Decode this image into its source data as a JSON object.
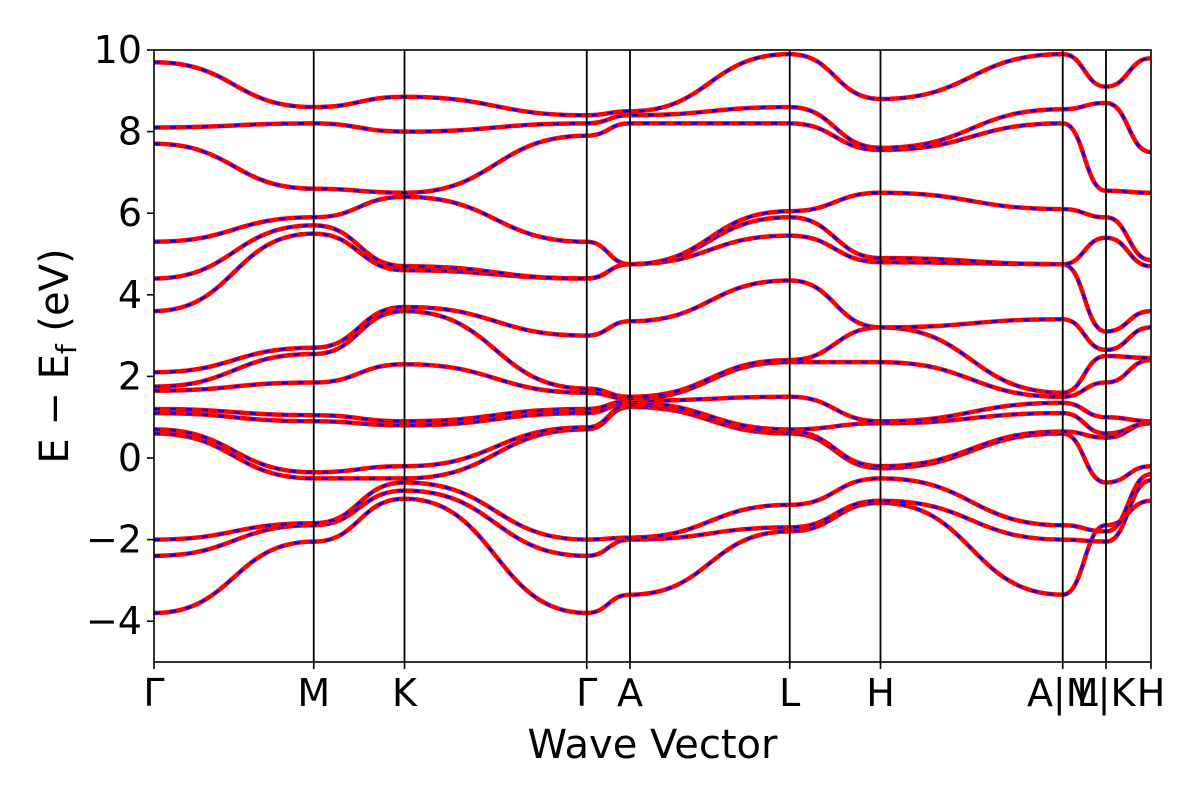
{
  "chart_data": {
    "type": "line",
    "xlabel": "Wave Vector",
    "ylabel": {
      "text_a": "E − E",
      "subscript": "f",
      "text_b": " (eV)"
    },
    "ylim": [
      -5,
      10
    ],
    "yticks": [
      -4,
      -2,
      0,
      2,
      4,
      6,
      8,
      10
    ],
    "ytick_labels": [
      "−4",
      "−2",
      "0",
      "2",
      "4",
      "6",
      "8",
      "10"
    ],
    "xlim": [
      0,
      2.79
    ],
    "kpoints": [
      {
        "label": "Γ",
        "x": 0.0
      },
      {
        "label": "M",
        "x": 0.447
      },
      {
        "label": "K",
        "x": 0.701
      },
      {
        "label": "Γ",
        "x": 1.211
      },
      {
        "label": "A",
        "x": 1.332
      },
      {
        "label": "L",
        "x": 1.779
      },
      {
        "label": "H",
        "x": 2.033
      },
      {
        "label": "A|M",
        "x": 2.543
      },
      {
        "label": "L|K",
        "x": 2.664
      },
      {
        "label": "H",
        "x": 2.79
      }
    ],
    "vlines_x": [
      0.447,
      0.701,
      1.211,
      1.332,
      1.779,
      2.033,
      2.543,
      2.664
    ],
    "colors": {
      "primary": "#ff0000",
      "overlay": "#0000ff",
      "axis": "#000000"
    },
    "series": [
      {
        "x": [
          0,
          0.447,
          0.701,
          1.211,
          1.332,
          1.779,
          2.033,
          2.543,
          2.664,
          2.79
        ],
        "values": [
          -3.8,
          -2.05,
          -1.0,
          -3.8,
          -3.35,
          -1.8,
          -1.1,
          -3.35,
          -1.65,
          -1.05
        ]
      },
      {
        "x": [
          0,
          0.447,
          0.701,
          1.211,
          1.332,
          1.779,
          2.033,
          2.543,
          2.664,
          2.79
        ],
        "values": [
          -2.4,
          -1.65,
          -0.8,
          -2.4,
          -2.0,
          -1.7,
          -1.05,
          -2.0,
          -2.05,
          -0.55
        ]
      },
      {
        "x": [
          0,
          0.447,
          0.701,
          1.211,
          1.332,
          1.779,
          2.033,
          2.543,
          2.664,
          2.79
        ],
        "values": [
          -2.0,
          -1.6,
          -0.6,
          -2.0,
          -1.95,
          -1.15,
          -0.5,
          -1.65,
          -1.8,
          -0.4
        ]
      },
      {
        "x": [
          0,
          0.447,
          0.701,
          1.211,
          1.332,
          1.779,
          2.033,
          2.543,
          2.664,
          2.79
        ],
        "values": [
          0.6,
          -0.5,
          -0.5,
          0.7,
          1.25,
          0.6,
          -0.25,
          0.6,
          -0.6,
          -0.2
        ]
      },
      {
        "x": [
          0,
          0.447,
          0.701,
          1.211,
          1.332,
          1.779,
          2.033,
          2.543,
          2.664,
          2.79
        ],
        "values": [
          0.7,
          -0.35,
          -0.2,
          0.75,
          1.3,
          0.65,
          -0.2,
          0.65,
          0.5,
          0.85
        ]
      },
      {
        "x": [
          0,
          0.447,
          0.701,
          1.211,
          1.332,
          1.779,
          2.033,
          2.543,
          2.664,
          2.79
        ],
        "values": [
          1.1,
          0.9,
          0.8,
          1.1,
          1.35,
          0.7,
          0.85,
          1.1,
          0.6,
          0.85
        ]
      },
      {
        "x": [
          0,
          0.447,
          0.701,
          1.211,
          1.332,
          1.779,
          2.033,
          2.543,
          2.664,
          2.79
        ],
        "values": [
          1.2,
          1.05,
          0.9,
          1.2,
          1.4,
          1.5,
          0.9,
          1.35,
          1.0,
          0.9
        ]
      },
      {
        "x": [
          0,
          0.447,
          0.701,
          1.211,
          1.332,
          1.779,
          2.033,
          2.543,
          2.664,
          2.79
        ],
        "values": [
          1.65,
          1.85,
          2.3,
          1.6,
          1.45,
          2.35,
          2.35,
          1.5,
          1.85,
          2.4
        ]
      },
      {
        "x": [
          0,
          0.447,
          0.701,
          1.211,
          1.332,
          1.779,
          2.033,
          2.543,
          2.664,
          2.79
        ],
        "values": [
          1.75,
          2.55,
          3.6,
          1.7,
          1.5,
          2.4,
          3.2,
          1.6,
          2.5,
          2.45
        ]
      },
      {
        "x": [
          0,
          0.447,
          0.701,
          1.211,
          1.332,
          1.779,
          2.033,
          2.543,
          2.664,
          2.79
        ],
        "values": [
          2.1,
          2.7,
          3.7,
          3.0,
          3.35,
          4.35,
          3.2,
          3.4,
          2.65,
          3.2
        ]
      },
      {
        "x": [
          0,
          0.447,
          0.701,
          1.211,
          1.332,
          1.779,
          2.033,
          2.543,
          2.664,
          2.79
        ],
        "values": [
          3.6,
          5.5,
          4.6,
          4.4,
          4.75,
          5.45,
          4.8,
          4.75,
          3.1,
          3.6
        ]
      },
      {
        "x": [
          0,
          0.447,
          0.701,
          1.211,
          1.332,
          1.779,
          2.033,
          2.543,
          2.664,
          2.79
        ],
        "values": [
          4.4,
          5.7,
          4.7,
          4.4,
          4.75,
          5.9,
          4.9,
          4.75,
          5.4,
          4.7
        ]
      },
      {
        "x": [
          0,
          0.447,
          0.701,
          1.211,
          1.332,
          1.779,
          2.033,
          2.543,
          2.664,
          2.79
        ],
        "values": [
          5.3,
          5.9,
          6.4,
          5.3,
          4.75,
          6.05,
          6.5,
          6.1,
          5.9,
          4.85
        ]
      },
      {
        "x": [
          0,
          0.447,
          0.701,
          1.211,
          1.332,
          1.779,
          2.033,
          2.543,
          2.664,
          2.79
        ],
        "values": [
          7.7,
          6.6,
          6.5,
          7.9,
          8.2,
          8.2,
          7.55,
          8.2,
          6.55,
          6.5
        ]
      },
      {
        "x": [
          0,
          0.447,
          0.701,
          1.211,
          1.332,
          1.779,
          2.033,
          2.543,
          2.664,
          2.79
        ],
        "values": [
          8.1,
          8.2,
          8.0,
          8.2,
          8.4,
          8.6,
          7.6,
          8.55,
          8.7,
          7.5
        ]
      },
      {
        "x": [
          0,
          0.447,
          0.701,
          1.211,
          1.332,
          1.779,
          2.033,
          2.543,
          2.664,
          2.79
        ],
        "values": [
          9.7,
          8.6,
          8.85,
          8.4,
          8.5,
          9.9,
          8.8,
          9.9,
          9.1,
          9.8
        ]
      }
    ]
  }
}
